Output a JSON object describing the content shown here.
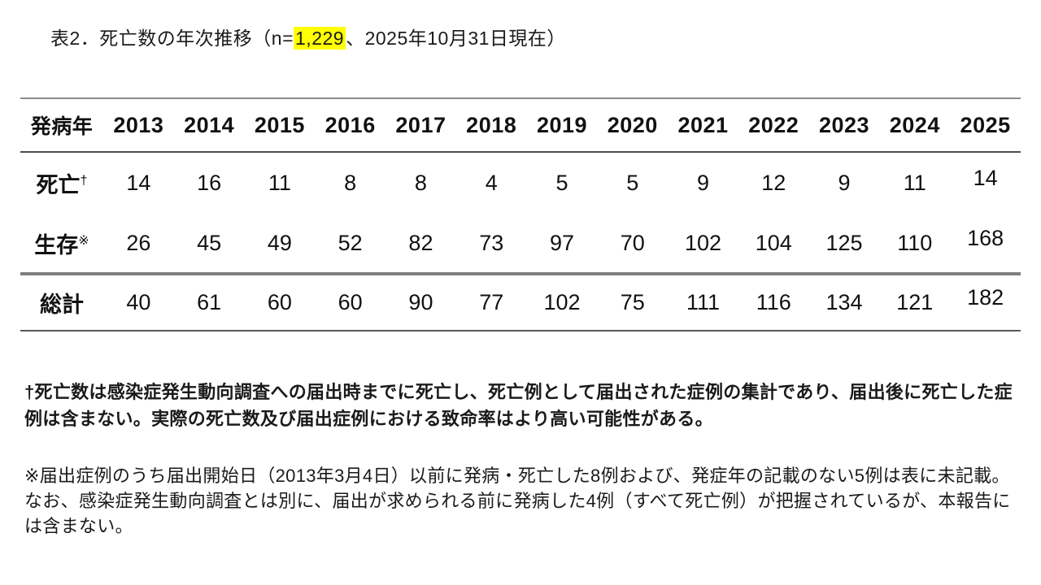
{
  "title": {
    "prefix": "表2．死亡数の年次推移（n=",
    "highlight": "1,229",
    "suffix": "、2025年10月31日現在）",
    "highlight_color": "#ffff00"
  },
  "table": {
    "corner_label": "発病年",
    "years": [
      "2013",
      "2014",
      "2015",
      "2016",
      "2017",
      "2018",
      "2019",
      "2020",
      "2021",
      "2022",
      "2023",
      "2024",
      "2025"
    ],
    "rows": [
      {
        "label": "死亡",
        "sup": "†",
        "values": [
          14,
          16,
          11,
          8,
          8,
          4,
          5,
          5,
          9,
          12,
          9,
          11,
          14
        ]
      },
      {
        "label": "生存",
        "sup": "※",
        "values": [
          26,
          45,
          49,
          52,
          82,
          73,
          97,
          70,
          102,
          104,
          125,
          110,
          168
        ]
      },
      {
        "label": "総計",
        "sup": "",
        "values": [
          40,
          61,
          60,
          60,
          90,
          77,
          102,
          75,
          111,
          116,
          134,
          121,
          182
        ]
      }
    ]
  },
  "footnotes": {
    "dagger": "†死亡数は感染症発生動向調査への届出時までに死亡し、死亡例として届出された症例の集計であり、届出後に死亡した症例は含まない。実際の死亡数及び届出症例における致命率はより高い可能性がある。",
    "refmark": "※届出症例のうち届出開始日（2013年3月4日）以前に発病・死亡した8例および、発症年の記載のない5例は表に未記載。なお、感染症発生動向調査とは別に、届出が求められる前に発病した4例（すべて死亡例）が把握されているが、本報告には含まない。"
  }
}
